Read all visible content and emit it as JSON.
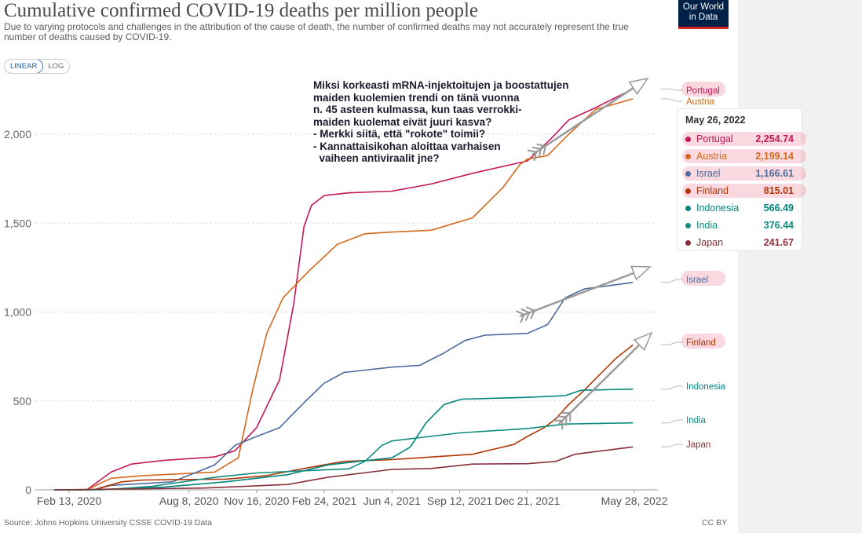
{
  "header": {
    "title": "Cumulative confirmed COVID-19 deaths per million people",
    "subtitle": "Due to varying protocols and challenges in the attribution of the cause of death, the number of confirmed deaths may not accurately represent the true number of deaths caused by COVID-19.",
    "logo_line1": "Our World",
    "logo_line2": "in Data"
  },
  "controls": {
    "linear_label": "LINEAR",
    "log_label": "LOG",
    "active": "linear"
  },
  "annotation": "Miksi korkeasti mRNA-injektoitujen ja boostattujen\nmaiden kuolemien trendi on tänä vuonna\nn. 45 asteen kulmassa, kun taas verrokki-\nmaiden kuolemat eivät juuri kasva?\n- Merkki siitä, että \"rokote\" toimii?\n- Kannattaisikohan aloittaa varhaisen\n  vaiheen antiviraalit jne?",
  "tooltip": {
    "date": "May 26, 2022",
    "rows": [
      {
        "name": "Portugal",
        "value": "2,254.74",
        "color": "#c2185b",
        "highlight": true
      },
      {
        "name": "Austria",
        "value": "2,199.14",
        "color": "#d2691e",
        "highlight": true
      },
      {
        "name": "Israel",
        "value": "1,166.61",
        "color": "#4c6a9c",
        "highlight": true
      },
      {
        "name": "Finland",
        "value": "815.01",
        "color": "#b13507",
        "highlight": true
      },
      {
        "name": "Indonesia",
        "value": "566.49",
        "color": "#00847e",
        "highlight": false
      },
      {
        "name": "India",
        "value": "376.44",
        "color": "#0f8c7e",
        "highlight": false
      },
      {
        "name": "Japan",
        "value": "241.67",
        "color": "#883039",
        "highlight": false
      }
    ]
  },
  "footer": {
    "source": "Source: Johns Hopkins University CSSE COVID-19 Data",
    "license": "CC BY"
  },
  "chart_data": {
    "type": "line",
    "title": "Cumulative confirmed COVID-19 deaths per million people",
    "ylim": [
      0,
      2300
    ],
    "yticks": [
      0,
      500,
      1000,
      1500,
      2000
    ],
    "ytick_labels": [
      "0",
      "500",
      "1,000",
      "1,500",
      "2,000"
    ],
    "x_range": [
      "2020-01-22",
      "2022-06-10"
    ],
    "xticks": [
      "2020-02-13",
      "2020-08-08",
      "2020-11-16",
      "2021-02-24",
      "2021-06-04",
      "2021-09-12",
      "2021-12-21",
      "2022-05-28"
    ],
    "xtick_labels": [
      "Feb 13, 2020",
      "Aug 8, 2020",
      "Nov 16, 2020",
      "Feb 24, 2021",
      "Jun 4, 2021",
      "Sep 12, 2021",
      "Dec 21, 2021",
      "May 28, 2022"
    ],
    "grid": "horizontal dashed",
    "series": [
      {
        "name": "Portugal",
        "color": "#c2185b",
        "x": [
          "2020-01-22",
          "2020-03-10",
          "2020-04-15",
          "2020-05-15",
          "2020-07-01",
          "2020-09-15",
          "2020-10-15",
          "2020-11-16",
          "2020-12-20",
          "2021-01-10",
          "2021-01-25",
          "2021-02-05",
          "2021-02-24",
          "2021-04-01",
          "2021-06-04",
          "2021-08-01",
          "2021-10-01",
          "2021-12-21",
          "2022-01-25",
          "2022-02-20",
          "2022-04-01",
          "2022-05-26"
        ],
        "y": [
          0,
          0,
          100,
          145,
          165,
          185,
          220,
          350,
          620,
          1050,
          1480,
          1600,
          1655,
          1670,
          1680,
          1720,
          1780,
          1850,
          1975,
          2080,
          2150,
          2254.74
        ]
      },
      {
        "name": "Austria",
        "color": "#d2691e",
        "x": [
          "2020-01-22",
          "2020-03-10",
          "2020-04-15",
          "2020-06-01",
          "2020-09-15",
          "2020-10-20",
          "2020-11-10",
          "2020-12-01",
          "2020-12-25",
          "2021-02-01",
          "2021-03-15",
          "2021-04-25",
          "2021-06-04",
          "2021-08-01",
          "2021-10-01",
          "2021-11-15",
          "2021-12-10",
          "2021-12-21",
          "2022-01-20",
          "2022-02-20",
          "2022-04-01",
          "2022-05-26"
        ],
        "y": [
          0,
          0,
          65,
          80,
          100,
          180,
          560,
          880,
          1080,
          1230,
          1380,
          1440,
          1450,
          1460,
          1530,
          1700,
          1830,
          1860,
          1880,
          2000,
          2140,
          2199.14
        ]
      },
      {
        "name": "Israel",
        "color": "#4c6a9c",
        "x": [
          "2020-01-22",
          "2020-03-20",
          "2020-04-15",
          "2020-06-01",
          "2020-07-15",
          "2020-09-15",
          "2020-10-15",
          "2020-11-16",
          "2020-12-20",
          "2021-01-25",
          "2021-02-24",
          "2021-03-25",
          "2021-06-04",
          "2021-07-15",
          "2021-08-20",
          "2021-09-20",
          "2021-10-20",
          "2021-12-21",
          "2022-01-20",
          "2022-02-15",
          "2022-03-15",
          "2022-05-26"
        ],
        "y": [
          0,
          0,
          25,
          35,
          45,
          140,
          250,
          300,
          350,
          490,
          600,
          660,
          690,
          700,
          770,
          840,
          870,
          880,
          930,
          1080,
          1130,
          1166.61
        ]
      },
      {
        "name": "Finland",
        "color": "#b13507",
        "x": [
          "2020-01-22",
          "2020-03-20",
          "2020-05-01",
          "2020-06-01",
          "2020-10-01",
          "2020-12-01",
          "2021-02-01",
          "2021-03-25",
          "2021-06-04",
          "2021-10-01",
          "2021-12-01",
          "2021-12-21",
          "2022-01-15",
          "2022-02-01",
          "2022-02-20",
          "2022-03-15",
          "2022-04-10",
          "2022-05-01",
          "2022-05-26"
        ],
        "y": [
          0,
          0,
          45,
          55,
          60,
          80,
          125,
          160,
          170,
          200,
          255,
          300,
          350,
          400,
          480,
          560,
          660,
          740,
          815.01
        ]
      },
      {
        "name": "Indonesia",
        "color": "#00847e",
        "x": [
          "2020-01-22",
          "2020-04-01",
          "2020-07-01",
          "2020-10-01",
          "2021-01-01",
          "2021-03-01",
          "2021-04-15",
          "2021-06-04",
          "2021-07-01",
          "2021-07-25",
          "2021-08-20",
          "2021-09-15",
          "2021-12-21",
          "2022-02-15",
          "2022-03-10",
          "2022-05-26"
        ],
        "y": [
          0,
          2,
          15,
          45,
          85,
          140,
          160,
          180,
          240,
          380,
          480,
          510,
          520,
          530,
          560,
          566.49
        ]
      },
      {
        "name": "India",
        "color": "#0f8c7e",
        "x": [
          "2020-01-22",
          "2020-04-01",
          "2020-06-15",
          "2020-09-15",
          "2020-11-16",
          "2021-02-24",
          "2021-04-01",
          "2021-04-25",
          "2021-05-20",
          "2021-06-04",
          "2021-09-12",
          "2021-12-21",
          "2022-02-15",
          "2022-05-26"
        ],
        "y": [
          0,
          0,
          20,
          70,
          95,
          112,
          118,
          160,
          250,
          275,
          320,
          345,
          370,
          376.44
        ]
      },
      {
        "name": "Japan",
        "color": "#883039",
        "x": [
          "2020-01-22",
          "2020-05-01",
          "2020-09-01",
          "2021-01-01",
          "2021-03-01",
          "2021-06-04",
          "2021-08-01",
          "2021-10-01",
          "2021-12-21",
          "2022-02-01",
          "2022-03-01",
          "2022-05-26"
        ],
        "y": [
          0,
          5,
          10,
          30,
          70,
          115,
          120,
          145,
          147,
          160,
          200,
          241.67
        ]
      }
    ]
  }
}
